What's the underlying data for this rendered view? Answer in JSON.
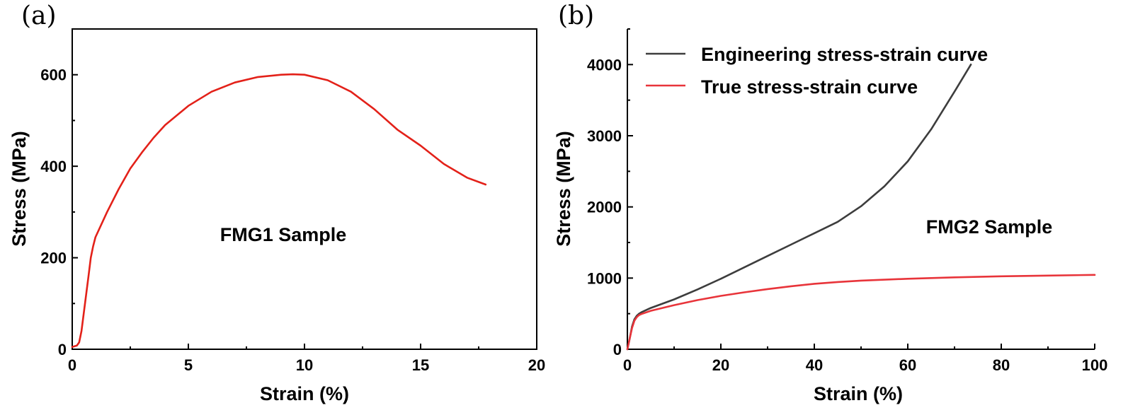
{
  "chart_data": [
    {
      "type": "line",
      "panel_label": "(a)",
      "annotation": "FMG1 Sample",
      "xlabel": "Strain (%)",
      "ylabel": "Stress (MPa)",
      "xlim": [
        0,
        20
      ],
      "ylim": [
        0,
        700
      ],
      "xticks": [
        0,
        5,
        10,
        15,
        20
      ],
      "yticks": [
        0,
        200,
        400,
        600
      ],
      "x_tick_labels": [
        "0",
        "5",
        "10",
        "15",
        "20"
      ],
      "y_tick_labels": [
        "0",
        "200",
        "400",
        "600"
      ],
      "grid": false,
      "series": [
        {
          "name": "FMG1",
          "color": "#e32119",
          "x": [
            0,
            0.2,
            0.3,
            0.4,
            0.5,
            0.6,
            0.7,
            0.8,
            0.9,
            1.0,
            1.5,
            2.0,
            2.5,
            3.0,
            3.5,
            4.0,
            5.0,
            6.0,
            7.0,
            8.0,
            9.0,
            9.5,
            10.0,
            11.0,
            12.0,
            13.0,
            14.0,
            15.0,
            16.0,
            17.0,
            17.8
          ],
          "y": [
            5,
            8,
            15,
            40,
            80,
            120,
            160,
            200,
            225,
            245,
            300,
            350,
            395,
            430,
            462,
            490,
            532,
            563,
            583,
            595,
            600,
            601,
            600,
            588,
            563,
            525,
            480,
            445,
            405,
            375,
            360
          ]
        }
      ]
    },
    {
      "type": "line",
      "panel_label": "(b)",
      "annotation": "FMG2 Sample",
      "xlabel": "Strain (%)",
      "ylabel": "Stress (MPa)",
      "xlim": [
        0,
        100
      ],
      "ylim": [
        0,
        4500
      ],
      "xticks": [
        0,
        20,
        40,
        60,
        80,
        100
      ],
      "yticks": [
        0,
        1000,
        2000,
        3000,
        4000
      ],
      "x_tick_labels": [
        "0",
        "20",
        "40",
        "60",
        "80",
        "100"
      ],
      "y_tick_labels": [
        "0",
        "1000",
        "2000",
        "3000",
        "4000"
      ],
      "grid": false,
      "legend_position": "top-left",
      "series": [
        {
          "name": "Engineering stress-strain curve",
          "color": "#3d3d3d",
          "x": [
            0,
            0.5,
            1,
            1.5,
            2,
            2.5,
            3,
            5,
            10,
            15,
            20,
            25,
            30,
            35,
            40,
            45,
            50,
            55,
            60,
            65,
            70,
            73.5
          ],
          "y": [
            0,
            150,
            320,
            420,
            470,
            500,
            520,
            580,
            700,
            840,
            990,
            1150,
            1310,
            1470,
            1630,
            1790,
            2010,
            2290,
            2640,
            3090,
            3620,
            4000
          ]
        },
        {
          "name": "True stress-strain curve",
          "color": "#e8343a",
          "x": [
            0,
            0.5,
            1,
            1.5,
            2,
            2.5,
            3,
            5,
            10,
            15,
            20,
            25,
            30,
            35,
            40,
            45,
            50,
            60,
            70,
            80,
            90,
            100
          ],
          "y": [
            0,
            150,
            300,
            400,
            450,
            480,
            495,
            540,
            620,
            690,
            750,
            800,
            845,
            885,
            920,
            945,
            965,
            990,
            1010,
            1025,
            1035,
            1045
          ]
        }
      ]
    }
  ]
}
